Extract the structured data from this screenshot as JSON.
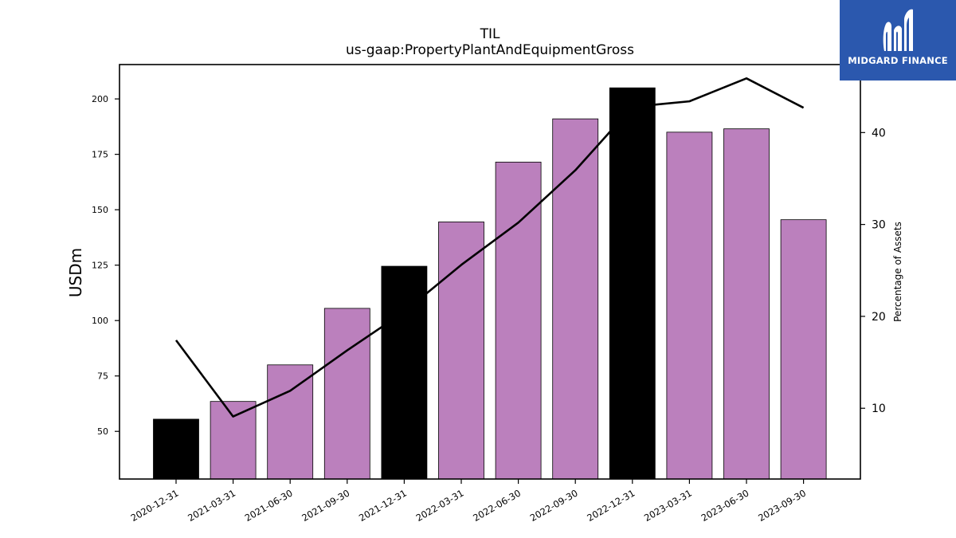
{
  "chart_data": {
    "type": "bar",
    "title": "TIL",
    "subtitle": "us-gaap:PropertyPlantAndEquipmentGross",
    "ylabel": "USDm",
    "y2label": "Percentage of Assets",
    "categories": [
      "2020-12-31",
      "2021-03-31",
      "2021-06-30",
      "2021-09-30",
      "2021-12-31",
      "2022-03-31",
      "2022-06-30",
      "2022-09-30",
      "2022-12-31",
      "2023-03-31",
      "2023-06-30",
      "2023-09-30"
    ],
    "series": [
      {
        "type": "bar",
        "values": [
          55.5,
          63.5,
          80,
          105.5,
          124.5,
          144.5,
          171.5,
          191,
          205,
          185,
          186.5,
          145.5
        ]
      },
      {
        "type": "line",
        "axis": "right",
        "values": [
          17.4,
          9.1,
          11.9,
          16.3,
          20.5,
          25.6,
          30.2,
          35.9,
          42.8,
          43.4,
          45.9,
          42.7
        ]
      }
    ],
    "bar_colors": [
      "#000000",
      "#bb80bd",
      "#bb80bd",
      "#bb80bd",
      "#000000",
      "#bb80bd",
      "#bb80bd",
      "#bb80bd",
      "#000000",
      "#bb80bd",
      "#bb80bd",
      "#bb80bd"
    ],
    "line_color": "#000000",
    "ylim": [
      28.5,
      215.5
    ],
    "y_ticks": [
      50,
      75,
      100,
      125,
      150,
      175,
      200
    ],
    "y2lim": [
      2.3,
      47.4
    ],
    "y2_ticks": [
      10,
      20,
      30,
      40
    ],
    "grid": false
  },
  "logo": {
    "text": "MIDGARD FINANCE",
    "background": "#2b58ae"
  }
}
